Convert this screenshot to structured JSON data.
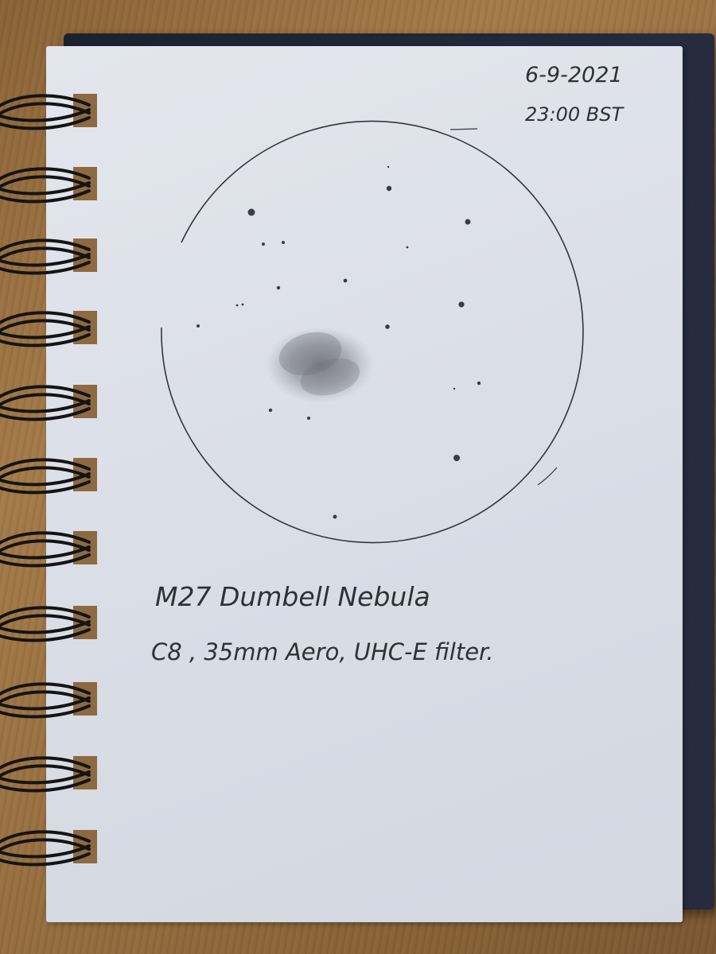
{
  "note": {
    "date": "6-9-2021",
    "time": "23:00 BST",
    "title": "M27 Dumbell Nebula",
    "equipment": "C8 ,  35mm Aero,  UHC-E filter."
  },
  "colors": {
    "pencil": "#2e3138",
    "nebula": "#7d808a",
    "page": "#dde0e8",
    "cover": "#222838",
    "wire": "#141414"
  }
}
